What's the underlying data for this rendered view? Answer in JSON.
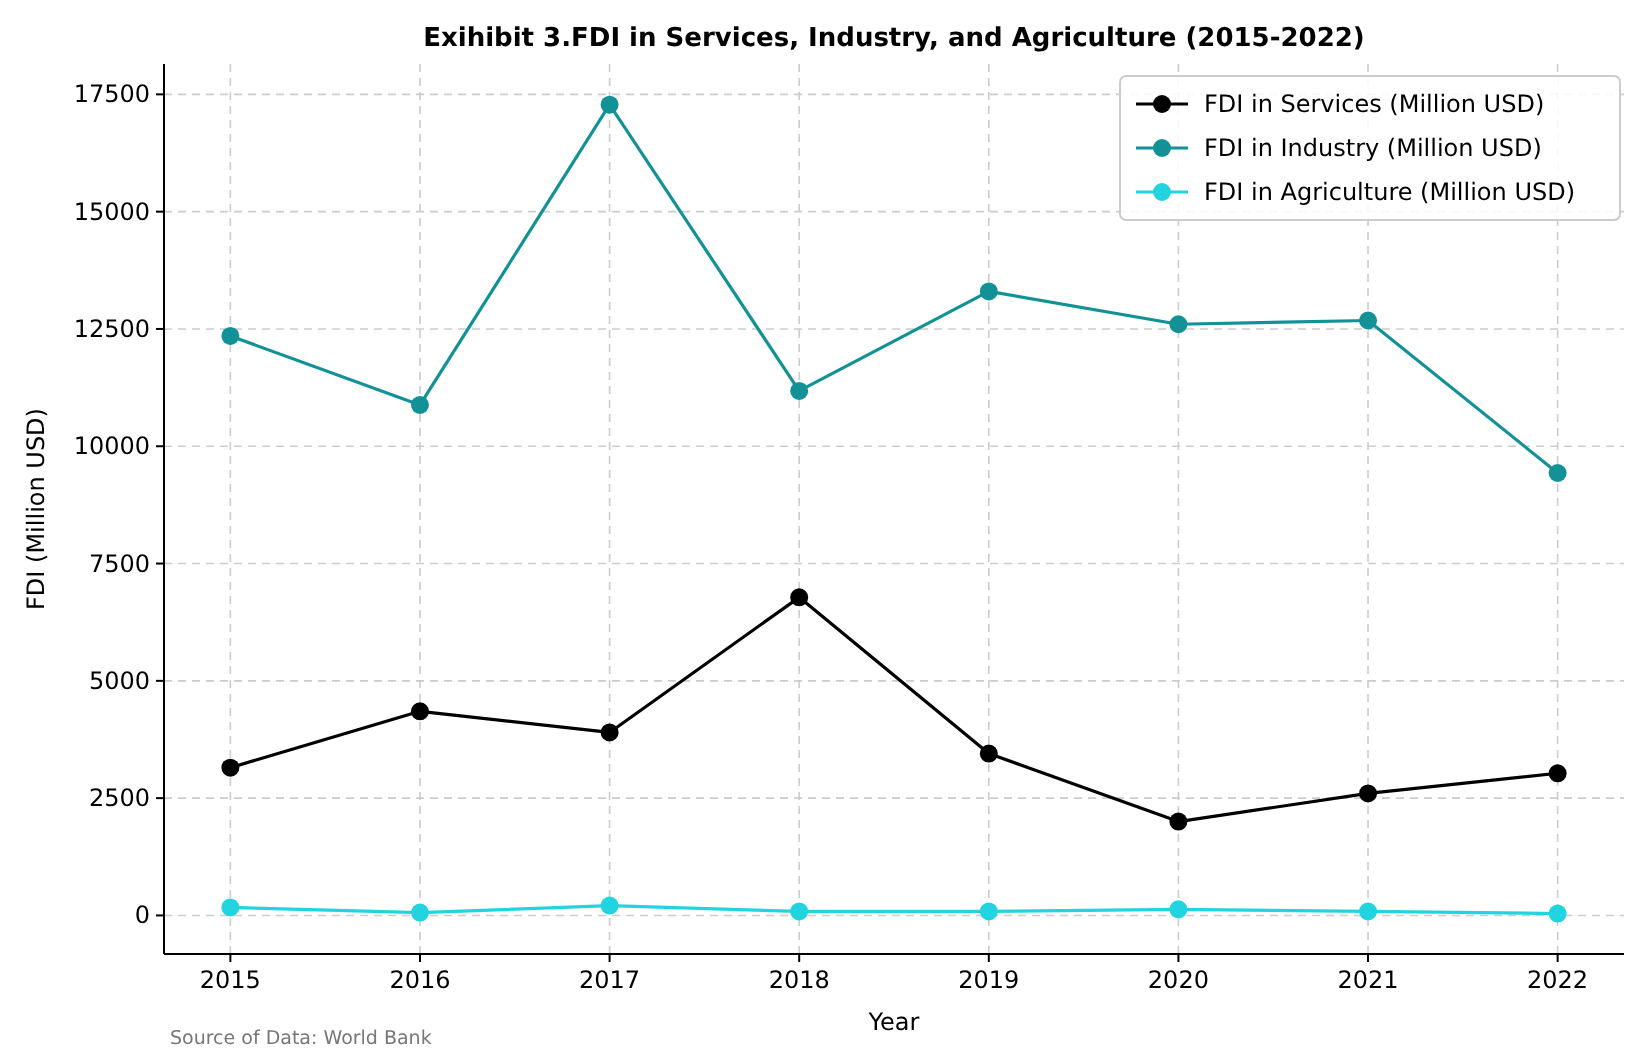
{
  "chart_data": {
    "type": "line",
    "title": "Exihibit 3.FDI in Services, Industry, and Agriculture (2015-2022)",
    "xlabel": "Year",
    "ylabel": "FDI (Million USD)",
    "x": [
      2015,
      2016,
      2017,
      2018,
      2019,
      2020,
      2021,
      2022
    ],
    "series": [
      {
        "name": "FDI in Services (Million USD)",
        "color": "#000000",
        "values": [
          3150,
          4350,
          3900,
          6780,
          3450,
          2000,
          2600,
          3030
        ]
      },
      {
        "name": "FDI in Industry (Million USD)",
        "color": "#129297",
        "values": [
          12350,
          10880,
          17280,
          11180,
          13300,
          12600,
          12680,
          9430
        ]
      },
      {
        "name": "FDI in Agriculture (Million USD)",
        "color": "#22d3e0",
        "values": [
          170,
          60,
          210,
          85,
          85,
          130,
          85,
          40
        ]
      }
    ],
    "xlim": [
      2014.65,
      2022.35
    ],
    "ylim": [
      -822,
      18147
    ],
    "xticks": [
      2015,
      2016,
      2017,
      2018,
      2019,
      2020,
      2021,
      2022
    ],
    "yticks": [
      0,
      2500,
      5000,
      7500,
      10000,
      12500,
      15000,
      17500
    ],
    "grid": true,
    "legend": "top right",
    "marker": "circle",
    "line_style": "solid",
    "annotations": [
      "Source of Data: World Bank"
    ]
  }
}
